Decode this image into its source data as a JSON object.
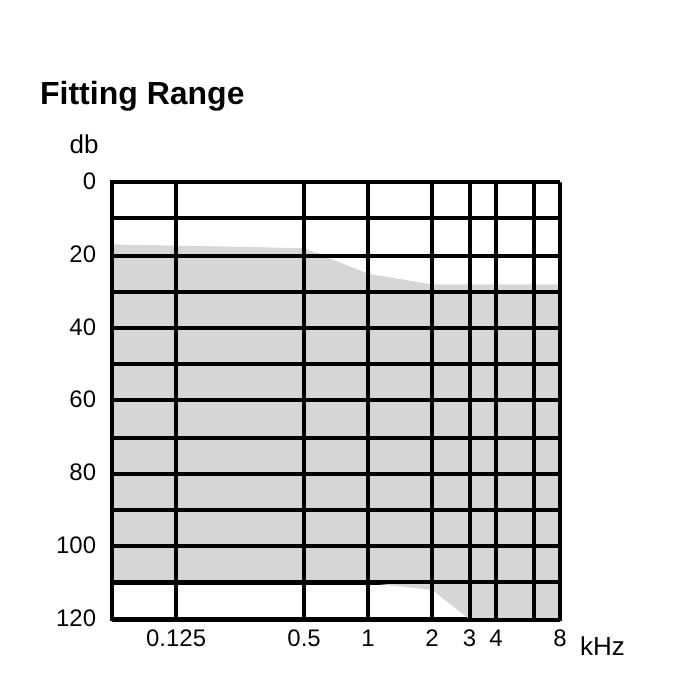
{
  "chart_data": {
    "type": "area",
    "title": "Fitting Range",
    "ylabel": "db",
    "xlabel": "kHz",
    "log": "x",
    "xlim": [
      0.0625,
      8
    ],
    "xticks": [
      {
        "value": 0.0625,
        "label": null
      },
      0.125,
      0.5,
      1,
      2,
      3,
      4,
      {
        "value": 6,
        "label": null
      },
      8
    ],
    "ylim": [
      120,
      0
    ],
    "yticks": [
      0,
      {
        "value": 10,
        "label": null
      },
      20,
      {
        "value": 30,
        "label": null
      },
      40,
      {
        "value": 50,
        "label": null
      },
      60,
      {
        "value": 70,
        "label": null
      },
      80,
      {
        "value": 90,
        "label": null
      },
      100,
      {
        "value": 110,
        "label": null
      },
      120
    ],
    "grid": true,
    "legend": false,
    "stacked": true,
    "series": [
      {
        "color": "#ffffff",
        "x": [
          0.0625,
          0.5,
          1,
          2,
          3,
          8
        ],
        "values": [
          17,
          18,
          25,
          28,
          28,
          28
        ]
      },
      {
        "color": "#d6d6d6",
        "x": [
          0.0625,
          0.5,
          1,
          2,
          3,
          8
        ],
        "values": [
          93,
          92,
          85,
          84,
          92,
          92
        ]
      }
    ]
  }
}
